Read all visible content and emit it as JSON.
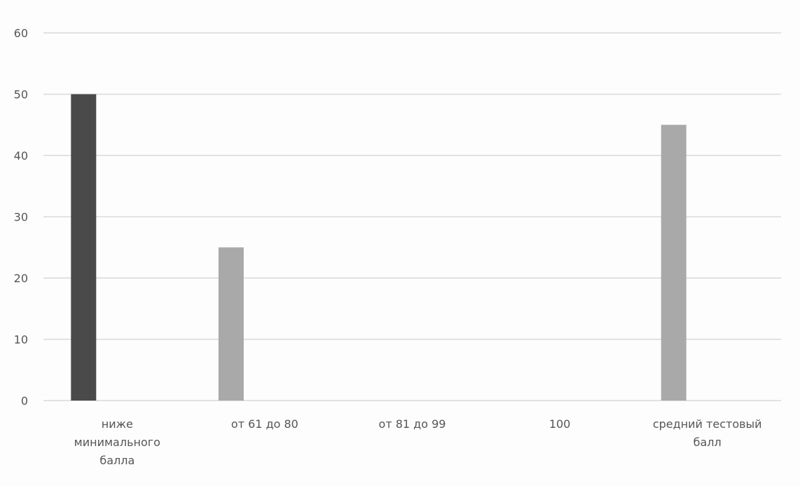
{
  "chart_data": {
    "type": "bar",
    "categories": [
      [
        "ниже",
        "минимального",
        "балла"
      ],
      [
        "от 61 до 80"
      ],
      [
        "от 81 до 99"
      ],
      [
        "100"
      ],
      [
        "средний тестовый",
        "балл"
      ]
    ],
    "values": [
      50,
      25,
      0,
      0,
      45
    ],
    "bar_colors": [
      "#4a4a4a",
      "#a9a9a9",
      "#a9a9a9",
      "#a9a9a9",
      "#a9a9a9"
    ],
    "gridline_color": "#d9d9d9",
    "ylim": [
      0,
      60
    ],
    "yticks": [
      0,
      10,
      20,
      30,
      40,
      50,
      60
    ],
    "title": "",
    "xlabel": "",
    "ylabel": "",
    "grid": true,
    "legend": "none"
  }
}
